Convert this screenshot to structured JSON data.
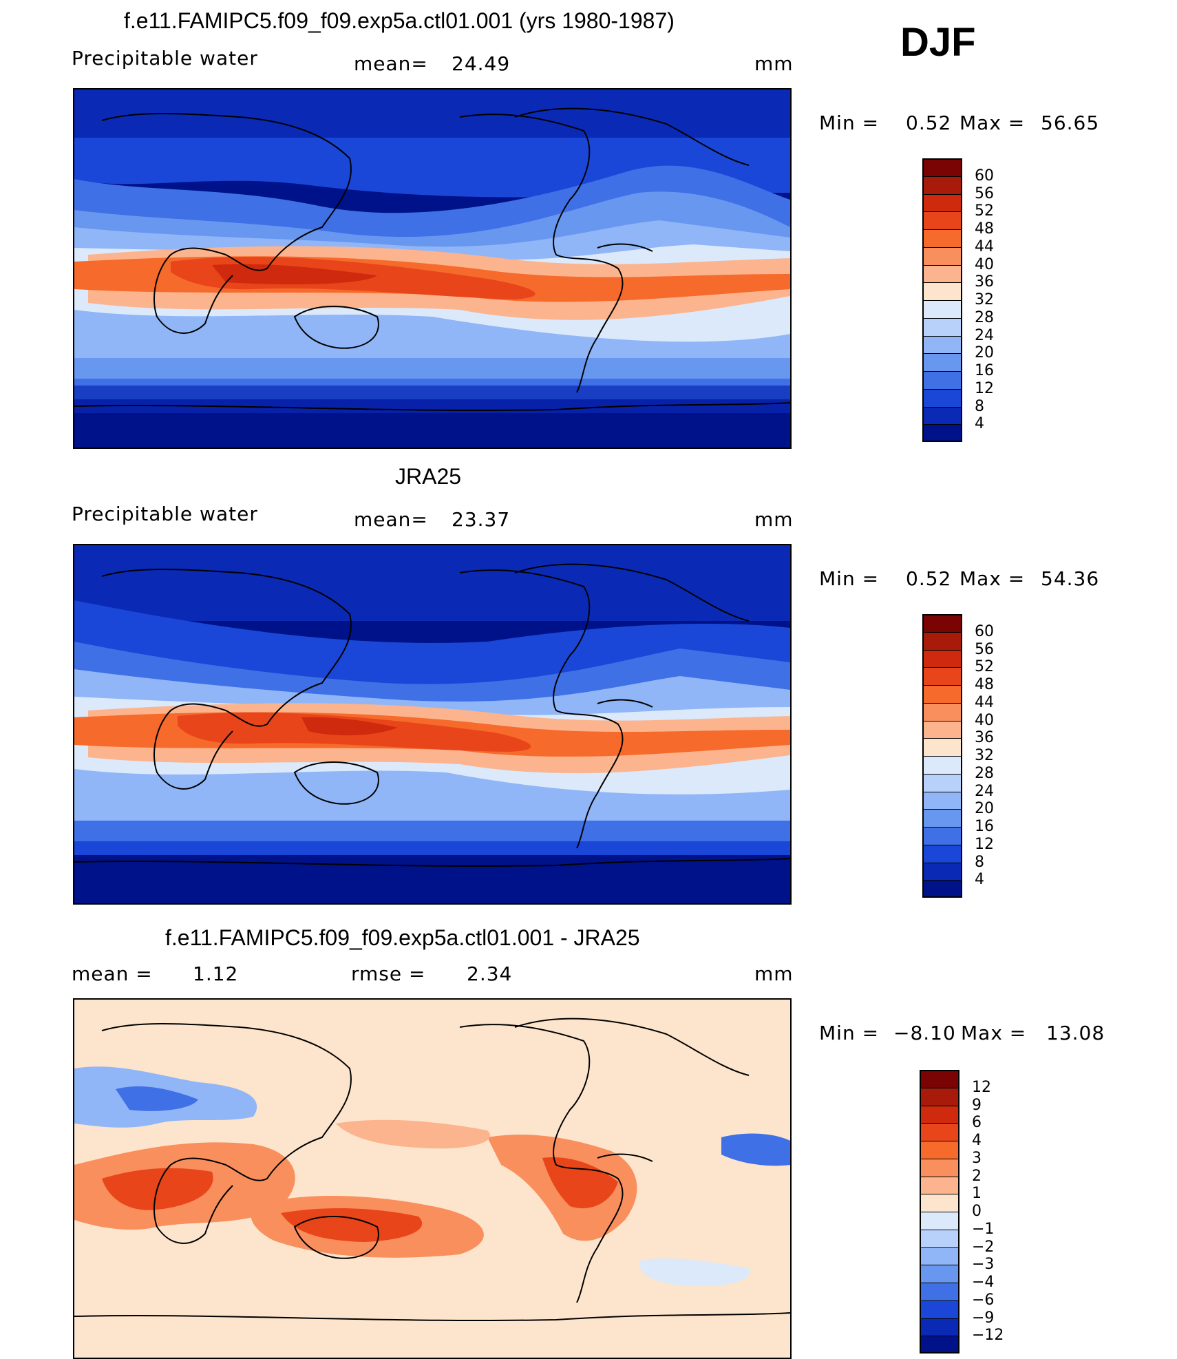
{
  "header": {
    "season": "DJF"
  },
  "panels": [
    {
      "title": "f.e11.FAMIPC5.f09_f09.exp5a.ctl01.001 (yrs 1980-1987)",
      "left": "Precipitable  water",
      "mid_label": "mean=",
      "mid_value": "24.49",
      "units": "mm",
      "minmax": {
        "min_label": "Min =",
        "min": "0.52",
        "max_label": "Max =",
        "max": "56.65"
      }
    },
    {
      "title": "JRA25",
      "left": "Precipitable  water",
      "mid_label": "mean=",
      "mid_value": "23.37",
      "units": "mm",
      "minmax": {
        "min_label": "Min =",
        "min": "0.52",
        "max_label": "Max =",
        "max": "54.36"
      }
    },
    {
      "title": "f.e11.FAMIPC5.f09_f09.exp5a.ctl01.001 - JRA25",
      "left_label": "mean =",
      "left_value": "1.12",
      "mid_label": "rmse =",
      "mid_value": "2.34",
      "units": "mm",
      "minmax": {
        "min_label": "Min =",
        "min": "−8.10",
        "max_label": "Max =",
        "max": "13.08"
      }
    }
  ],
  "colorbars": {
    "abs": {
      "labels": [
        "60",
        "56",
        "52",
        "48",
        "44",
        "40",
        "36",
        "32",
        "28",
        "24",
        "20",
        "16",
        "12",
        "8",
        "4"
      ],
      "colors": [
        "#7a0403",
        "#a81b0b",
        "#cf2a0e",
        "#e8461a",
        "#f66a2c",
        "#f98f5c",
        "#fbb48e",
        "#fde4cc",
        "#dbe9fb",
        "#b7d1fb",
        "#90b6f7",
        "#6897f0",
        "#3f70e6",
        "#1a47d8",
        "#0a2ab5",
        "#00128a"
      ]
    },
    "diff": {
      "labels": [
        "12",
        "9",
        "6",
        "4",
        "3",
        "2",
        "1",
        "0",
        "−1",
        "−2",
        "−3",
        "−4",
        "−6",
        "−9",
        "−12"
      ],
      "colors": [
        "#7a0403",
        "#a81b0b",
        "#cf2a0e",
        "#e8461a",
        "#f66a2c",
        "#f98f5c",
        "#fbb48e",
        "#fde4cc",
        "#dbe9fb",
        "#b7d1fb",
        "#90b6f7",
        "#6897f0",
        "#3f70e6",
        "#1a47d8",
        "#0a2ab5",
        "#00128a"
      ]
    }
  }
}
